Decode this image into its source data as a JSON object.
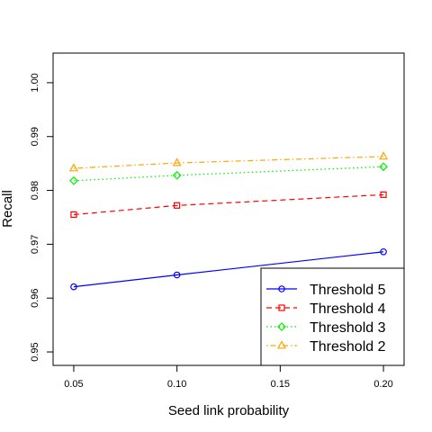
{
  "chart_data": {
    "type": "line",
    "title": "",
    "xlabel": "Seed link probability",
    "ylabel": "Recall",
    "x": [
      0.05,
      0.1,
      0.2
    ],
    "xlim": [
      0.04,
      0.21
    ],
    "ylim": [
      0.9475,
      1.0055
    ],
    "xticks": [
      "0.05",
      "0.10",
      "0.15",
      "0.20"
    ],
    "yticks": [
      "0.95",
      "0.96",
      "0.97",
      "0.98",
      "0.99",
      "1.00"
    ],
    "grid": false,
    "legend_position": "bottom-right",
    "series": [
      {
        "name": "Threshold 5",
        "values": [
          0.9621,
          0.9643,
          0.9686
        ],
        "color": "#0000ff",
        "marker": "circle",
        "dash": "solid"
      },
      {
        "name": "Threshold 4",
        "values": [
          0.9755,
          0.9772,
          0.9792
        ],
        "color": "#ff0000",
        "marker": "square",
        "dash": "dashed"
      },
      {
        "name": "Threshold 3",
        "values": [
          0.9818,
          0.9828,
          0.9844
        ],
        "color": "#00ee00",
        "marker": "diamond",
        "dash": "dotted"
      },
      {
        "name": "Threshold 2",
        "values": [
          0.9841,
          0.9851,
          0.9863
        ],
        "color": "#ffa500",
        "marker": "triangle",
        "dash": "dotdash"
      }
    ]
  }
}
